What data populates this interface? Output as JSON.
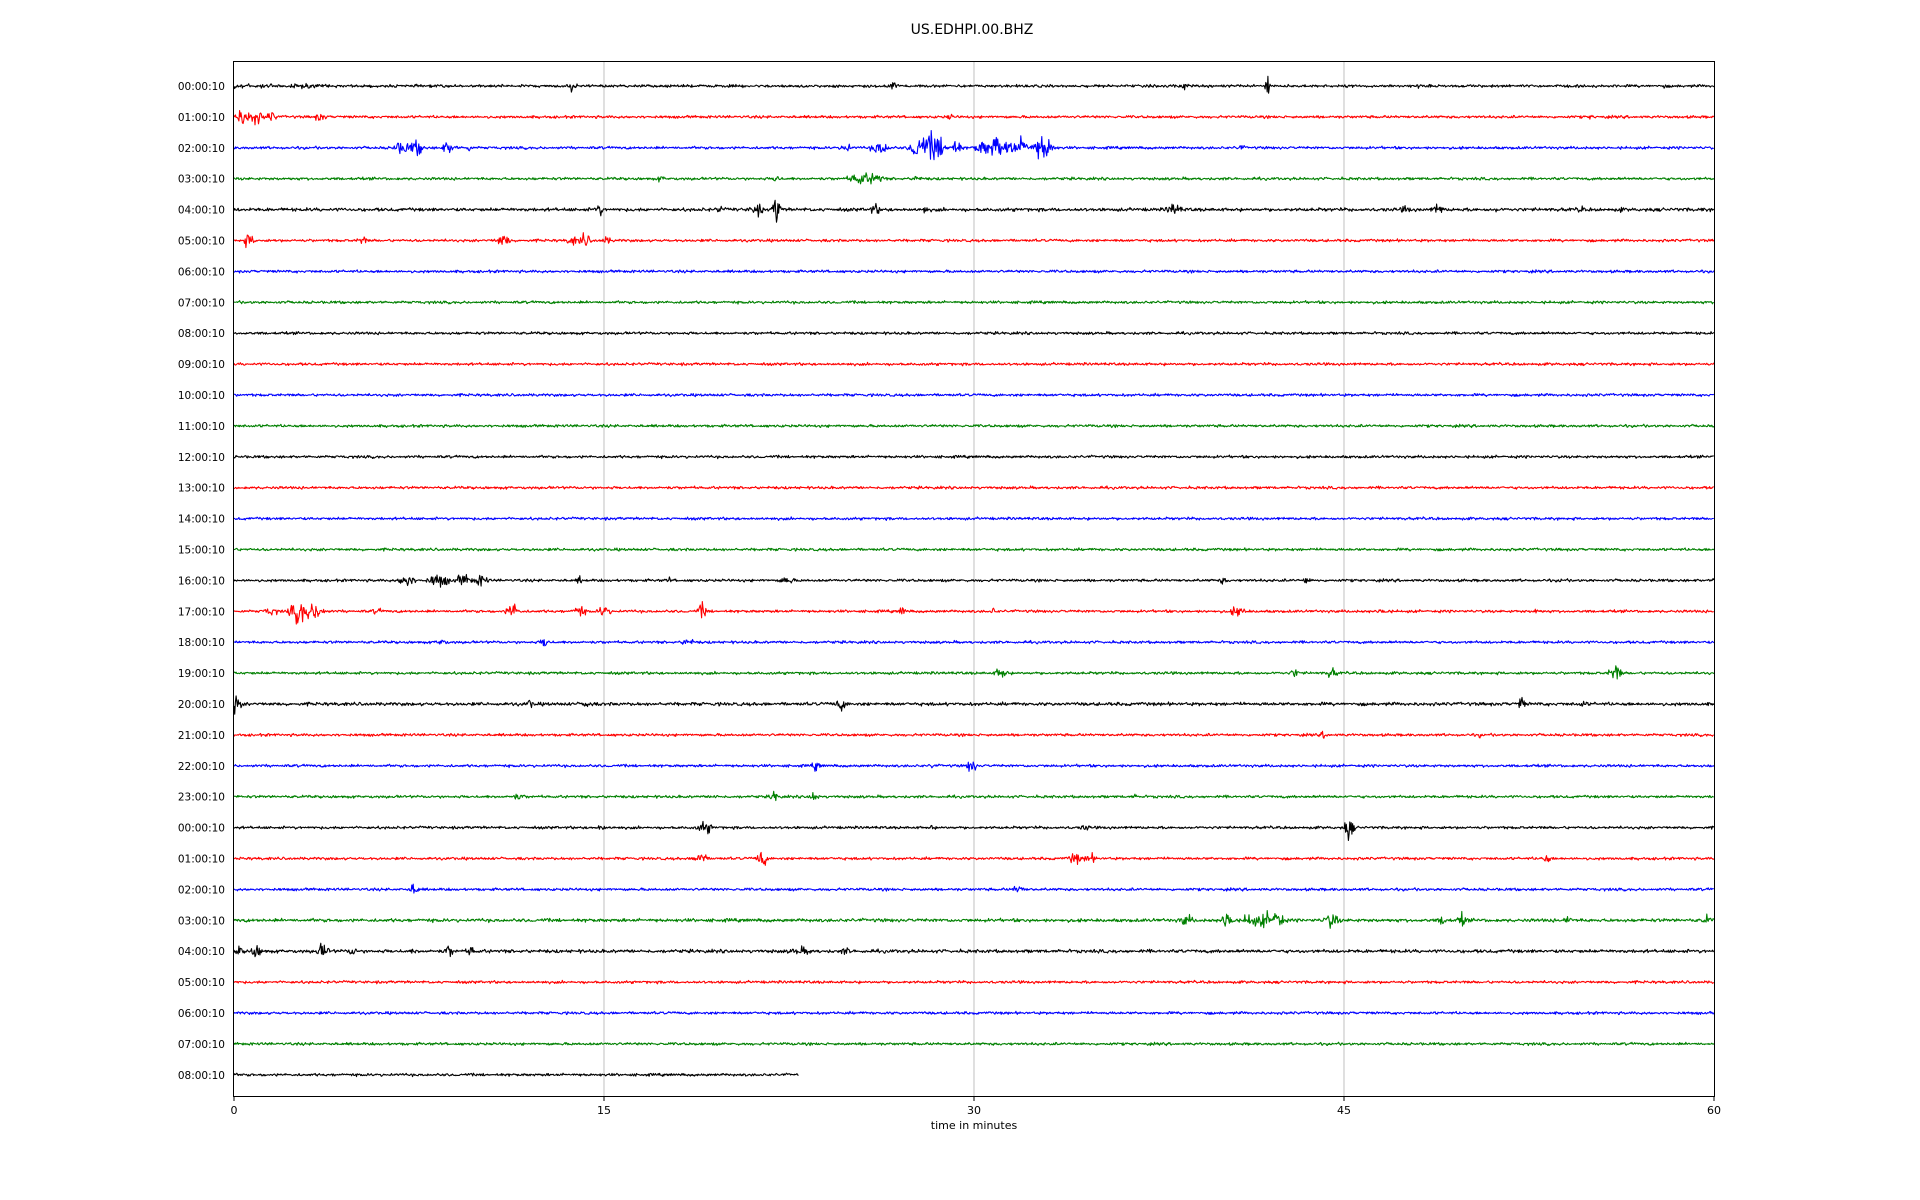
{
  "chart_data": {
    "type": "line",
    "title": "US.EDHPI.00.BHZ",
    "xlabel": "time in minutes",
    "ylabel": "",
    "xlim": [
      0,
      60
    ],
    "xticks": [
      0,
      15,
      30,
      45,
      60
    ],
    "xtick_labels": [
      "0",
      "15",
      "30",
      "45",
      "60"
    ],
    "grid": "vertical lines at x ticks",
    "row_colors": [
      "#000000",
      "#ff0000",
      "#0000ff",
      "#008000"
    ],
    "rows": [
      {
        "label": "00:00:10",
        "end": 60,
        "noise": 2.0,
        "events": [
          [
            0.2,
            5,
            1.2
          ],
          [
            1.5,
            4,
            1.2
          ],
          [
            2.8,
            4,
            1.2
          ],
          [
            3.8,
            3,
            0.4
          ],
          [
            8.4,
            3,
            0.2
          ],
          [
            13.7,
            8,
            0.3
          ],
          [
            26.7,
            7,
            0.4
          ],
          [
            38.5,
            7,
            0.3
          ],
          [
            41.9,
            16,
            0.15
          ],
          [
            48.0,
            5,
            0.1
          ],
          [
            58.0,
            4,
            0.1
          ]
        ]
      },
      {
        "label": "01:00:10",
        "end": 60,
        "noise": 2.0,
        "events": [
          [
            0.3,
            12,
            0.6
          ],
          [
            0.8,
            12,
            0.6
          ],
          [
            1.5,
            8,
            0.4
          ],
          [
            3.5,
            7,
            0.4
          ],
          [
            29.0,
            5,
            0.3
          ],
          [
            55.0,
            4,
            0.2
          ]
        ]
      },
      {
        "label": "02:00:10",
        "end": 60,
        "noise": 2.0,
        "events": [
          [
            6.8,
            10,
            0.6
          ],
          [
            7.4,
            12,
            0.5
          ],
          [
            8.7,
            10,
            0.5
          ],
          [
            9.5,
            12,
            0.1
          ],
          [
            24.8,
            10,
            0.3
          ],
          [
            26.2,
            11,
            0.6
          ],
          [
            27.8,
            20,
            0.6
          ],
          [
            28.4,
            24,
            0.6
          ],
          [
            29.2,
            12,
            0.5
          ],
          [
            30.4,
            12,
            0.6
          ],
          [
            30.9,
            28,
            0.3
          ],
          [
            31.5,
            16,
            0.4
          ],
          [
            32.0,
            20,
            0.3
          ],
          [
            32.8,
            22,
            0.6
          ],
          [
            40.8,
            5,
            0.3
          ]
        ]
      },
      {
        "label": "03:00:10",
        "end": 60,
        "noise": 2.0,
        "events": [
          [
            17.3,
            5,
            0.3
          ],
          [
            25.4,
            10,
            0.8
          ],
          [
            26.0,
            10,
            0.5
          ],
          [
            27.7,
            10,
            0.2
          ],
          [
            22.0,
            10,
            0.2
          ]
        ]
      },
      {
        "label": "04:00:10",
        "end": 60,
        "noise": 2.5,
        "events": [
          [
            14.8,
            10,
            0.3
          ],
          [
            19.7,
            8,
            0.2
          ],
          [
            21.2,
            9,
            0.5
          ],
          [
            21.9,
            8,
            0.2
          ],
          [
            22.0,
            28,
            0.2
          ],
          [
            26.0,
            8,
            0.4
          ],
          [
            28.0,
            7,
            0.2
          ],
          [
            38.1,
            10,
            0.5
          ],
          [
            47.5,
            6,
            0.4
          ],
          [
            48.8,
            9,
            0.4
          ],
          [
            51.2,
            5,
            0.2
          ],
          [
            54.6,
            8,
            0.2
          ],
          [
            56.2,
            5,
            0.2
          ],
          [
            58.4,
            4,
            0.2
          ],
          [
            59.5,
            4,
            0.2
          ]
        ]
      },
      {
        "label": "05:00:10",
        "end": 60,
        "noise": 2.0,
        "events": [
          [
            0.6,
            10,
            0.4
          ],
          [
            5.2,
            8,
            0.3
          ],
          [
            10.9,
            10,
            0.5
          ],
          [
            13.7,
            9,
            0.3
          ],
          [
            14.2,
            11,
            0.4
          ],
          [
            15.1,
            6,
            0.4
          ]
        ]
      },
      {
        "label": "06:00:10",
        "end": 60,
        "noise": 2.0,
        "events": []
      },
      {
        "label": "07:00:10",
        "end": 60,
        "noise": 2.0,
        "events": []
      },
      {
        "label": "08:00:10",
        "end": 60,
        "noise": 2.0,
        "events": []
      },
      {
        "label": "09:00:10",
        "end": 60,
        "noise": 2.0,
        "events": []
      },
      {
        "label": "10:00:10",
        "end": 60,
        "noise": 2.0,
        "events": []
      },
      {
        "label": "11:00:10",
        "end": 60,
        "noise": 2.0,
        "events": []
      },
      {
        "label": "12:00:10",
        "end": 60,
        "noise": 2.0,
        "events": []
      },
      {
        "label": "13:00:10",
        "end": 60,
        "noise": 2.0,
        "events": []
      },
      {
        "label": "14:00:10",
        "end": 60,
        "noise": 2.0,
        "events": []
      },
      {
        "label": "15:00:10",
        "end": 60,
        "noise": 2.0,
        "events": []
      },
      {
        "label": "16:00:10",
        "end": 60,
        "noise": 2.0,
        "events": [
          [
            7.0,
            12,
            0.5
          ],
          [
            8.3,
            11,
            0.7
          ],
          [
            9.3,
            9,
            0.6
          ],
          [
            10.0,
            9,
            0.5
          ],
          [
            14.0,
            7,
            0.2
          ],
          [
            17.6,
            6,
            0.2
          ],
          [
            22.4,
            7,
            0.5
          ],
          [
            40.1,
            6,
            0.3
          ],
          [
            43.5,
            9,
            0.2
          ],
          [
            53.8,
            4,
            0.2
          ],
          [
            60.0,
            5,
            0.1
          ]
        ]
      },
      {
        "label": "17:00:10",
        "end": 60,
        "noise": 2.0,
        "events": [
          [
            1.5,
            6,
            0.6
          ],
          [
            2.7,
            18,
            0.7
          ],
          [
            3.3,
            14,
            0.6
          ],
          [
            5.8,
            5,
            0.4
          ],
          [
            11.3,
            14,
            0.4
          ],
          [
            14.0,
            10,
            0.4
          ],
          [
            15.0,
            10,
            0.4
          ],
          [
            19.0,
            12,
            0.3
          ],
          [
            27.1,
            9,
            0.2
          ],
          [
            30.8,
            6,
            0.2
          ],
          [
            40.7,
            9,
            0.5
          ],
          [
            46.6,
            6,
            0.4
          ],
          [
            52.8,
            6,
            0.2
          ]
        ]
      },
      {
        "label": "18:00:10",
        "end": 60,
        "noise": 2.0,
        "events": [
          [
            8.4,
            6,
            0.4
          ],
          [
            12.6,
            10,
            0.3
          ],
          [
            18.4,
            7,
            0.4
          ]
        ]
      },
      {
        "label": "19:00:10",
        "end": 60,
        "noise": 2.0,
        "events": [
          [
            31.1,
            10,
            0.4
          ],
          [
            43.0,
            7,
            0.3
          ],
          [
            44.5,
            8,
            0.4
          ],
          [
            56.0,
            14,
            0.4
          ]
        ]
      },
      {
        "label": "20:00:10",
        "end": 60,
        "noise": 2.5,
        "events": [
          [
            0.1,
            16,
            0.3
          ],
          [
            12.0,
            7,
            0.3
          ],
          [
            14.3,
            9,
            0.3
          ],
          [
            24.6,
            10,
            0.4
          ],
          [
            52.2,
            14,
            0.2
          ],
          [
            54.7,
            6,
            0.3
          ]
        ]
      },
      {
        "label": "21:00:10",
        "end": 60,
        "noise": 2.0,
        "events": [
          [
            44.2,
            6,
            0.3
          ],
          [
            50.5,
            4,
            0.2
          ]
        ]
      },
      {
        "label": "22:00:10",
        "end": 60,
        "noise": 2.0,
        "events": [
          [
            23.6,
            8,
            0.3
          ],
          [
            28.3,
            7,
            0.1
          ],
          [
            29.9,
            12,
            0.3
          ]
        ]
      },
      {
        "label": "23:00:10",
        "end": 60,
        "noise": 2.0,
        "events": [
          [
            11.5,
            5,
            0.6
          ],
          [
            19.5,
            5,
            0.2
          ],
          [
            21.9,
            9,
            0.3
          ],
          [
            23.5,
            9,
            0.3
          ],
          [
            36.5,
            4,
            0.3
          ]
        ]
      },
      {
        "label": "00:00:10",
        "end": 60,
        "noise": 2.0,
        "events": [
          [
            14.9,
            6,
            0.3
          ],
          [
            19.1,
            10,
            0.5
          ],
          [
            28.3,
            5,
            0.2
          ],
          [
            34.5,
            6,
            0.3
          ],
          [
            45.2,
            18,
            0.3
          ]
        ]
      },
      {
        "label": "01:00:10",
        "end": 60,
        "noise": 2.0,
        "events": [
          [
            18.9,
            12,
            0.4
          ],
          [
            21.4,
            16,
            0.3
          ],
          [
            34.1,
            10,
            0.4
          ],
          [
            34.7,
            8,
            0.4
          ],
          [
            53.2,
            8,
            0.3
          ]
        ]
      },
      {
        "label": "02:00:10",
        "end": 60,
        "noise": 2.0,
        "events": [
          [
            7.3,
            10,
            0.3
          ],
          [
            31.8,
            6,
            0.5
          ]
        ]
      },
      {
        "label": "03:00:10",
        "end": 60,
        "noise": 2.5,
        "events": [
          [
            38.6,
            9,
            0.5
          ],
          [
            40.3,
            16,
            0.4
          ],
          [
            41.2,
            12,
            0.5
          ],
          [
            41.8,
            12,
            0.6
          ],
          [
            42.3,
            18,
            0.4
          ],
          [
            44.5,
            12,
            0.5
          ],
          [
            49.0,
            9,
            0.3
          ],
          [
            49.8,
            11,
            0.3
          ],
          [
            54.1,
            8,
            0.3
          ],
          [
            59.7,
            8,
            0.3
          ]
        ]
      },
      {
        "label": "04:00:10",
        "end": 60,
        "noise": 2.5,
        "events": [
          [
            0.2,
            8,
            0.3
          ],
          [
            0.9,
            10,
            0.5
          ],
          [
            3.6,
            12,
            0.4
          ],
          [
            4.8,
            8,
            0.3
          ],
          [
            7.3,
            6,
            0.2
          ],
          [
            8.7,
            10,
            0.3
          ],
          [
            9.6,
            9,
            0.3
          ],
          [
            23.0,
            6,
            1.0
          ],
          [
            24.8,
            6,
            0.4
          ]
        ]
      },
      {
        "label": "05:00:10",
        "end": 60,
        "noise": 2.0,
        "events": []
      },
      {
        "label": "06:00:10",
        "end": 60,
        "noise": 2.0,
        "events": []
      },
      {
        "label": "07:00:10",
        "end": 60,
        "noise": 2.0,
        "events": []
      },
      {
        "label": "08:00:10",
        "end": 22.9,
        "noise": 2.0,
        "events": []
      }
    ]
  }
}
